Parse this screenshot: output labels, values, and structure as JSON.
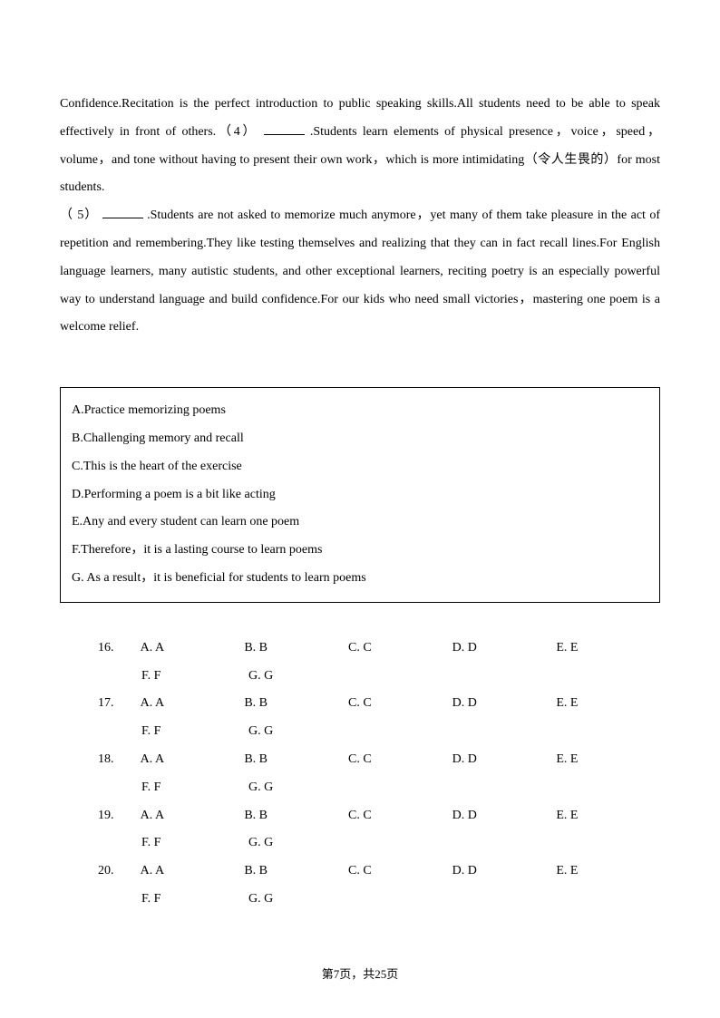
{
  "passage": {
    "p1_a": "Confidence.Recitation is the perfect introduction to public speaking skills.All students need to be able to speak effectively in front of others.（4）",
    "p1_b": ".Students learn elements of physical presence，voice，speed，volume，and tone without having to present their own work，which is more intimidating（令人生畏的）for most students.",
    "p2_a": "（ 5）",
    "p2_b": ".Students are not asked to memorize much anymore，yet many of them take pleasure in the act of repetition and remembering.They like testing themselves and realizing that they can in fact recall lines.For English language learners, many autistic students, and other exceptional learners, reciting poetry is an especially powerful way to understand language and build confidence.For our kids who need small victories，mastering one poem is a welcome relief."
  },
  "options": {
    "A": "A.Practice memorizing poems",
    "B": "B.Challenging memory and recall",
    "C": "C.This is the heart of the exercise",
    "D": "D.Performing a poem is a bit like acting",
    "E": "E.Any and every student can learn one poem",
    "F": "F.Therefore，it is a lasting course to learn poems",
    "G": "G. As a result，it is beneficial for students to learn poems"
  },
  "answers": {
    "questions": [
      "16.",
      "17.",
      "18.",
      "19.",
      "20."
    ],
    "choices": {
      "A": "A. A",
      "B": "B. B",
      "C": "C. C",
      "D": "D. D",
      "E": "E. E",
      "F": "F. F",
      "G": "G. G"
    }
  },
  "footer": "第7页，共25页"
}
